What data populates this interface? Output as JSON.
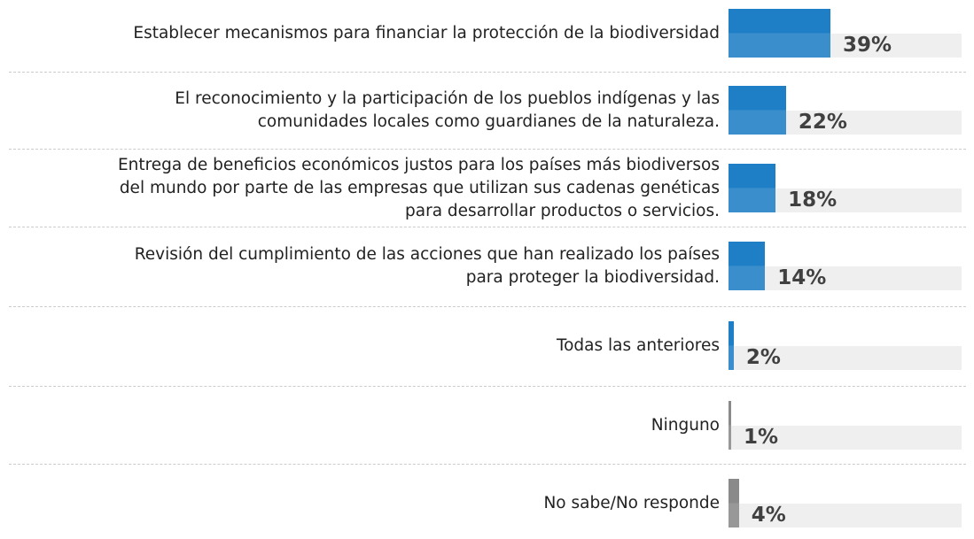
{
  "chart_data": {
    "type": "bar",
    "orientation": "horizontal",
    "categories": [
      "Establecer mecanismos para financiar la protección de la biodiversidad",
      "El reconocimiento y la participación de los pueblos indígenas y las comunidades locales como guardianes de la naturaleza.",
      "Entrega de beneficios económicos justos para los países más biodiversos del mundo por parte de las empresas que utilizan sus cadenas genéticas para desarrollar productos o servicios.",
      "Revisión del cumplimiento de las acciones que han realizado los países para proteger la biodiversidad.",
      "Todas las anteriores",
      "Ninguno",
      "No sabe/No responde"
    ],
    "values": [
      39,
      22,
      18,
      14,
      2,
      1,
      4
    ],
    "value_labels": [
      "39%",
      "22%",
      "18%",
      "14%",
      "2%",
      "1%",
      "4%"
    ],
    "colors": [
      "#1f7fc6",
      "#1f7fc6",
      "#1f7fc6",
      "#1f7fc6",
      "#1f7fc6",
      "#8a8a8a",
      "#8a8a8a"
    ]
  }
}
